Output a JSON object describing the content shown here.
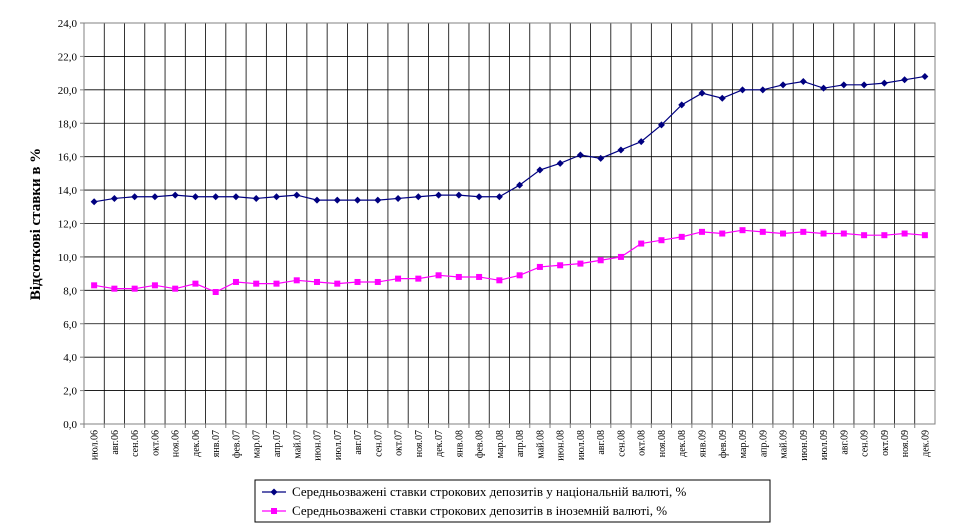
{
  "chart_data": {
    "type": "line",
    "ylabel": "Відсоткові ставки в %",
    "ylim": [
      0,
      24
    ],
    "ytick_labels": [
      "0,0",
      "2,0",
      "4,0",
      "6,0",
      "8,0",
      "10,0",
      "12,0",
      "14,0",
      "16,0",
      "18,0",
      "20,0",
      "22,0",
      "24,0"
    ],
    "categories": [
      "июл.06",
      "авг.06",
      "сен.06",
      "окт.06",
      "ноя.06",
      "дек.06",
      "янв.07",
      "фев.07",
      "мар.07",
      "апр.07",
      "май.07",
      "июн.07",
      "июл.07",
      "авг.07",
      "сен.07",
      "окт.07",
      "ноя.07",
      "дек.07",
      "янв.08",
      "фев.08",
      "мар.08",
      "апр.08",
      "май.08",
      "июн.08",
      "июл.08",
      "авг.08",
      "сен.08",
      "окт.08",
      "ноя.08",
      "дек.08",
      "янв.09",
      "фев.09",
      "мар.09",
      "апр.09",
      "май.09",
      "июн.09",
      "июл.09",
      "авг.09",
      "сен.09",
      "окт.09",
      "ноя.09",
      "дек.09"
    ],
    "grid": true,
    "legend_position": "bottom",
    "series": [
      {
        "name": "Середньозважені ставки строкових депозитів у національній валюті, %",
        "color": "#000080",
        "marker": "diamond",
        "values": [
          13.3,
          13.5,
          13.6,
          13.6,
          13.7,
          13.6,
          13.6,
          13.6,
          13.5,
          13.6,
          13.7,
          13.4,
          13.4,
          13.4,
          13.4,
          13.5,
          13.6,
          13.7,
          13.7,
          13.6,
          13.6,
          14.3,
          15.2,
          15.6,
          16.1,
          15.9,
          16.4,
          16.9,
          17.9,
          19.1,
          19.8,
          19.5,
          20.0,
          20.0,
          20.3,
          20.5,
          20.1,
          20.3,
          20.3,
          20.4,
          20.6,
          20.8
        ]
      },
      {
        "name": "Середньозважені ставки строкових депозитів в іноземній валюті, %",
        "color": "#FF00FF",
        "marker": "square",
        "values": [
          8.3,
          8.1,
          8.1,
          8.3,
          8.1,
          8.4,
          7.9,
          8.5,
          8.4,
          8.4,
          8.6,
          8.5,
          8.4,
          8.5,
          8.5,
          8.7,
          8.7,
          8.9,
          8.8,
          8.8,
          8.6,
          8.9,
          9.4,
          9.5,
          9.6,
          9.8,
          10.0,
          10.8,
          11.0,
          11.2,
          11.5,
          11.4,
          11.6,
          11.5,
          11.4,
          11.5,
          11.4,
          11.4,
          11.3,
          11.3,
          11.4,
          11.3
        ]
      }
    ]
  }
}
